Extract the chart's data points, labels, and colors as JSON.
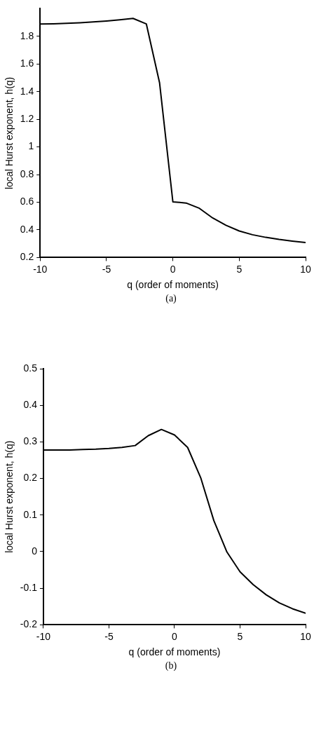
{
  "chart_data": [
    {
      "type": "line",
      "xlabel": "q (order of moments)",
      "ylabel": "local Hurst exponent, h(q)",
      "annotations": [
        "(a)"
      ],
      "x": [
        -10,
        -9,
        -8,
        -7,
        -6,
        -5,
        -4,
        -3,
        -2,
        -1,
        0,
        1,
        2,
        3,
        4,
        5,
        6,
        7,
        8,
        9,
        10
      ],
      "series": [
        {
          "color": "#000000",
          "values": [
            1.889,
            1.891,
            1.894,
            1.898,
            1.904,
            1.911,
            1.92,
            1.93,
            1.89,
            1.463,
            0.603,
            0.594,
            0.556,
            0.486,
            0.433,
            0.392,
            0.365,
            0.346,
            0.331,
            0.319,
            0.308
          ]
        }
      ],
      "xlim": [
        -10,
        10
      ],
      "xticks": [
        -10,
        -5,
        0,
        5,
        10
      ],
      "ylim": [
        0.2,
        2
      ],
      "yticks": [
        0.2,
        0.4,
        0.6,
        0.8,
        1,
        1.2,
        1.4,
        1.6,
        1.8
      ],
      "grid": false,
      "legend": false,
      "marker": "none",
      "line_style": "solid"
    },
    {
      "type": "line",
      "xlabel": "q (order of moments)",
      "ylabel": "local Hurst exponent, h(q)",
      "annotations": [
        "(b)"
      ],
      "x": [
        -10,
        -9,
        -8,
        -7,
        -6,
        -5,
        -4,
        -3,
        -2,
        -1,
        0,
        1,
        2,
        3,
        4,
        5,
        6,
        7,
        8,
        9,
        10
      ],
      "series": [
        {
          "color": "#000000",
          "values": [
            0.278,
            0.278,
            0.278,
            0.279,
            0.28,
            0.282,
            0.285,
            0.29,
            0.317,
            0.334,
            0.319,
            0.285,
            0.202,
            0.085,
            -0.001,
            -0.055,
            -0.09,
            -0.118,
            -0.14,
            -0.156,
            -0.168
          ]
        }
      ],
      "xlim": [
        -10,
        10
      ],
      "xticks": [
        -10,
        -5,
        0,
        5,
        10
      ],
      "ylim": [
        -0.2,
        0.5
      ],
      "yticks": [
        -0.2,
        -0.1,
        0,
        0.1,
        0.2,
        0.3,
        0.4,
        0.5
      ],
      "grid": false,
      "legend": false,
      "marker": "none",
      "line_style": "solid"
    }
  ]
}
